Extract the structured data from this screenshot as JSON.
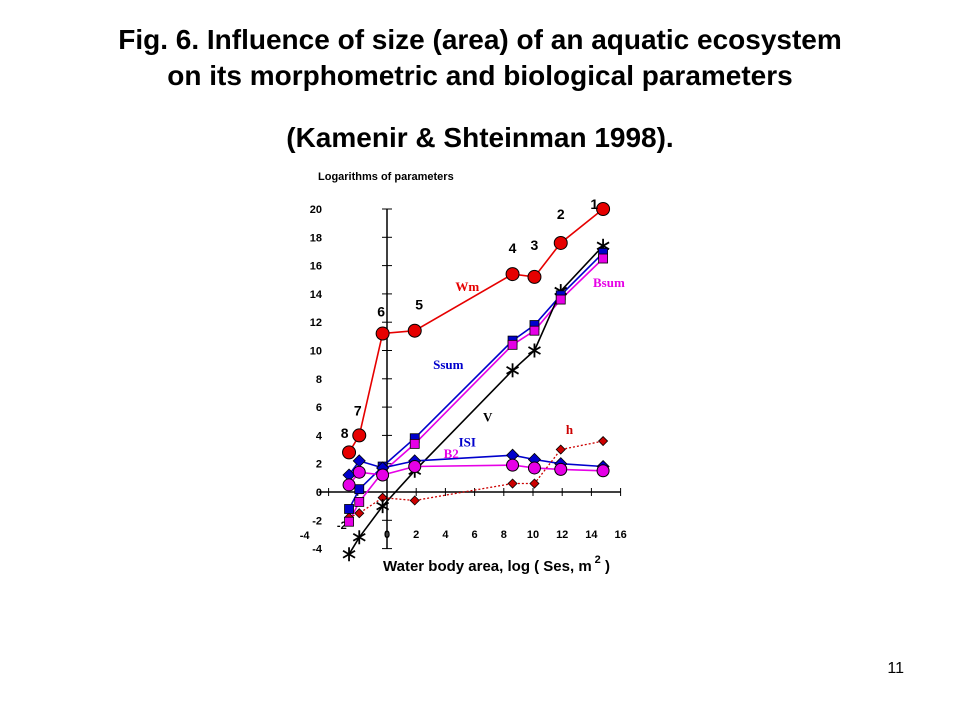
{
  "slide": {
    "title_line1": "Fig. 6. Influence of size (area) of an aquatic ecosystem",
    "title_line2": "on its morphometric and biological parameters",
    "citation": "(Kamenir & Shteinman 1998).",
    "page_number": "11"
  },
  "chart_data": {
    "type": "line",
    "ylabel": "Logarithms of parameters",
    "xlabel": "Water body area, log ( Ses, m",
    "xlabel_superscript": "2",
    "xlabel_suffix": " )",
    "xlim": [
      -4,
      16
    ],
    "ylim": [
      -4,
      20
    ],
    "x_ticks": [
      "-4",
      "-2",
      "0",
      "2",
      "4",
      "6",
      "8",
      "10",
      "12",
      "14",
      "16"
    ],
    "y_ticks": [
      "-4",
      "-2",
      "0",
      "2",
      "4",
      "6",
      "8",
      "10",
      "12",
      "14",
      "16",
      "18",
      "20"
    ],
    "grid": false,
    "series": [
      {
        "name": "Wm",
        "color": "#e60000",
        "marker": "circle-large",
        "line": "solid",
        "points": [
          [
            -2.6,
            2.8
          ],
          [
            -1.9,
            4.0
          ],
          [
            -0.3,
            11.2
          ],
          [
            1.9,
            11.4
          ],
          [
            8.6,
            15.4
          ],
          [
            10.1,
            15.2
          ],
          [
            11.9,
            17.6
          ],
          [
            14.8,
            20.0
          ]
        ]
      },
      {
        "name": "Bsum",
        "color": "#e600e6",
        "marker": "square",
        "line": "solid",
        "points": [
          [
            -2.6,
            -2.1
          ],
          [
            -1.9,
            -0.7
          ],
          [
            -0.3,
            1.4
          ],
          [
            1.9,
            3.4
          ],
          [
            8.6,
            10.4
          ],
          [
            10.1,
            11.4
          ],
          [
            11.9,
            13.6
          ],
          [
            14.8,
            16.5
          ]
        ]
      },
      {
        "name": "Ssum",
        "color": "#0000cc",
        "marker": "square",
        "line": "solid",
        "points": [
          [
            -2.6,
            -1.2
          ],
          [
            -1.9,
            0.2
          ],
          [
            -0.3,
            1.8
          ],
          [
            1.9,
            3.8
          ],
          [
            8.6,
            10.7
          ],
          [
            10.1,
            11.8
          ],
          [
            11.9,
            13.9
          ],
          [
            14.8,
            16.9
          ]
        ]
      },
      {
        "name": "V",
        "color": "#000000",
        "marker": "star",
        "line": "solid",
        "points": [
          [
            -2.6,
            -4.4
          ],
          [
            -1.9,
            -3.2
          ],
          [
            -0.3,
            -1.0
          ],
          [
            1.9,
            1.5
          ],
          [
            8.6,
            8.6
          ],
          [
            10.1,
            10.0
          ],
          [
            11.9,
            14.2
          ],
          [
            14.8,
            17.4
          ]
        ]
      },
      {
        "name": "ISI",
        "color": "#0000cc",
        "marker": "diamond",
        "line": "solid",
        "points": [
          [
            -2.6,
            1.2
          ],
          [
            -1.9,
            2.2
          ],
          [
            -0.3,
            1.7
          ],
          [
            1.9,
            2.2
          ],
          [
            8.6,
            2.6
          ],
          [
            10.1,
            2.3
          ],
          [
            11.9,
            2.0
          ],
          [
            14.8,
            1.8
          ]
        ]
      },
      {
        "name": "B2",
        "color": "#e600e6",
        "marker": "circle",
        "line": "solid",
        "points": [
          [
            -2.6,
            0.5
          ],
          [
            -1.9,
            1.4
          ],
          [
            -0.3,
            1.2
          ],
          [
            1.9,
            1.8
          ],
          [
            8.6,
            1.9
          ],
          [
            10.1,
            1.7
          ],
          [
            11.9,
            1.6
          ],
          [
            14.8,
            1.5
          ]
        ]
      },
      {
        "name": "h",
        "color": "#cc0000",
        "marker": "diamond-small",
        "line": "dotted",
        "points": [
          [
            -2.6,
            -1.8
          ],
          [
            -1.9,
            -1.5
          ],
          [
            -0.3,
            -0.4
          ],
          [
            1.9,
            -0.6
          ],
          [
            8.6,
            0.6
          ],
          [
            10.1,
            0.6
          ],
          [
            11.9,
            3.0
          ],
          [
            14.8,
            3.6
          ]
        ]
      }
    ],
    "series_labels": [
      {
        "text": "Wm",
        "x": 5.5,
        "y": 14.2,
        "color": "#e60000"
      },
      {
        "text": "Bsum",
        "x": 15.2,
        "y": 14.5,
        "color": "#e600e6"
      },
      {
        "text": "Ssum",
        "x": 4.2,
        "y": 8.7,
        "color": "#0000cc"
      },
      {
        "text": "V",
        "x": 6.9,
        "y": 5.0,
        "color": "#000000"
      },
      {
        "text": "ISI",
        "x": 5.5,
        "y": 3.2,
        "color": "#0000cc"
      },
      {
        "text": "B2",
        "x": 4.4,
        "y": 2.4,
        "color": "#e600e6"
      },
      {
        "text": "h",
        "x": 12.5,
        "y": 4.1,
        "color": "#cc0000"
      }
    ],
    "point_labels": [
      {
        "text": "1",
        "x": 14.2,
        "y": 20.0
      },
      {
        "text": "2",
        "x": 11.9,
        "y": 19.3
      },
      {
        "text": "3",
        "x": 10.1,
        "y": 17.1
      },
      {
        "text": "4",
        "x": 8.6,
        "y": 16.9
      },
      {
        "text": "5",
        "x": 2.2,
        "y": 12.9
      },
      {
        "text": "6",
        "x": -0.4,
        "y": 12.4
      },
      {
        "text": "7",
        "x": -2.0,
        "y": 5.4
      },
      {
        "text": "8",
        "x": -2.9,
        "y": 3.8
      }
    ]
  }
}
